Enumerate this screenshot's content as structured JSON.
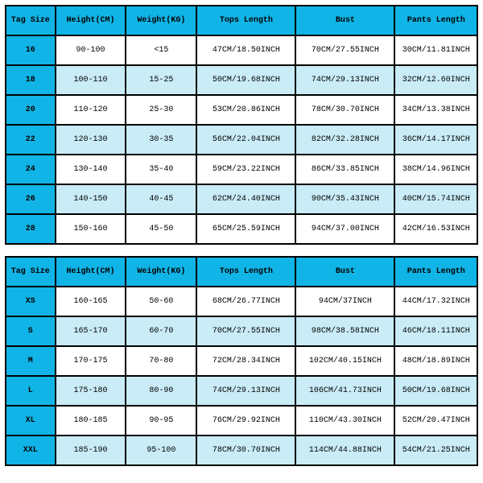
{
  "colors": {
    "header_bg": "#11b4e6",
    "row_odd_bg": "#ffffff",
    "row_even_bg": "#c9ecf7",
    "border": "#000000",
    "text": "#000000"
  },
  "table1": {
    "columns": [
      "Tag Size",
      "Height(CM)",
      "Weight(KG)",
      "Tops Length",
      "Bust",
      "Pants Length"
    ],
    "rows": [
      [
        "16",
        "90-100",
        "<15",
        "47CM/18.50INCH",
        "70CM/27.55INCH",
        "30CM/11.81INCH"
      ],
      [
        "18",
        "100-110",
        "15-25",
        "50CM/19.68INCH",
        "74CM/29.13INCH",
        "32CM/12.60INCH"
      ],
      [
        "20",
        "110-120",
        "25-30",
        "53CM/20.86INCH",
        "78CM/30.70INCH",
        "34CM/13.38INCH"
      ],
      [
        "22",
        "120-130",
        "30-35",
        "56CM/22.04INCH",
        "82CM/32.28INCH",
        "36CM/14.17INCH"
      ],
      [
        "24",
        "130-140",
        "35-40",
        "59CM/23.22INCH",
        "86CM/33.85INCH",
        "38CM/14.96INCH"
      ],
      [
        "26",
        "140-150",
        "40-45",
        "62CM/24.40INCH",
        "90CM/35.43INCH",
        "40CM/15.74INCH"
      ],
      [
        "28",
        "150-160",
        "45-50",
        "65CM/25.59INCH",
        "94CM/37.00INCH",
        "42CM/16.53INCH"
      ]
    ]
  },
  "table2": {
    "columns": [
      "Tag Size",
      "Height(CM)",
      "Weight(KG)",
      "Tops Length",
      "Bust",
      "Pants Length"
    ],
    "rows": [
      [
        "XS",
        "160-165",
        "50-60",
        "68CM/26.77INCH",
        "94CM/37INCH",
        "44CM/17.32INCH"
      ],
      [
        "S",
        "165-170",
        "60-70",
        "70CM/27.55INCH",
        "98CM/38.58INCH",
        "46CM/18.11INCH"
      ],
      [
        "M",
        "170-175",
        "70-80",
        "72CM/28.34INCH",
        "102CM/40.15INCH",
        "48CM/18.89INCH"
      ],
      [
        "L",
        "175-180",
        "80-90",
        "74CM/29.13INCH",
        "106CM/41.73INCH",
        "50CM/19.68INCH"
      ],
      [
        "XL",
        "180-185",
        "90-95",
        "76CM/29.92INCH",
        "110CM/43.30INCH",
        "52CM/20.47INCH"
      ],
      [
        "XXL",
        "185-190",
        "95-100",
        "78CM/30.70INCH",
        "114CM/44.88INCH",
        "54CM/21.25INCH"
      ]
    ]
  }
}
